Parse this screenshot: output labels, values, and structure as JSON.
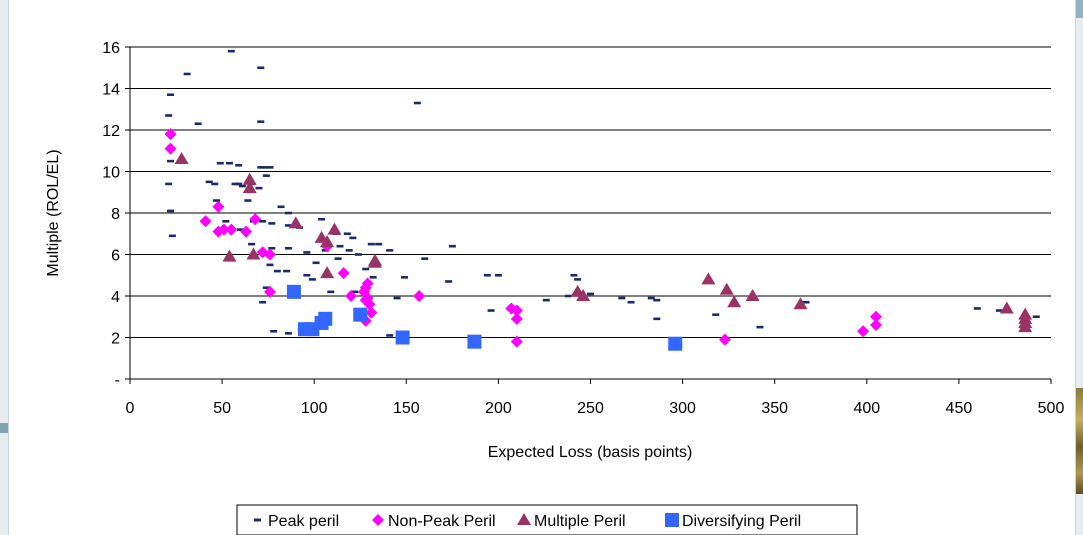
{
  "chart_data": {
    "type": "scatter",
    "xlabel": "Expected Loss (basis points)",
    "ylabel": "Multiple (ROL/EL)",
    "xlim": [
      0,
      500
    ],
    "ylim": [
      0,
      16
    ],
    "x_ticks": [
      "0",
      "50",
      "100",
      "150",
      "200",
      "250",
      "300",
      "350",
      "400",
      "450",
      "500"
    ],
    "y_ticks": [
      "-",
      "2",
      "4",
      "6",
      "8",
      "10",
      "12",
      "14",
      "16"
    ],
    "grid": "horizontal",
    "legend_position": "bottom",
    "series": [
      {
        "name": "Peak peril",
        "marker": "dash",
        "color": "#1a2a6b",
        "points": [
          [
            55,
            15.8
          ],
          [
            31,
            14.7
          ],
          [
            71,
            15.0
          ],
          [
            22,
            13.7
          ],
          [
            156,
            13.3
          ],
          [
            21,
            12.7
          ],
          [
            37,
            12.3
          ],
          [
            71,
            12.4
          ],
          [
            22,
            10.5
          ],
          [
            49,
            10.4
          ],
          [
            54,
            10.4
          ],
          [
            59,
            10.3
          ],
          [
            73,
            10.2
          ],
          [
            76,
            10.2
          ],
          [
            71,
            10.2
          ],
          [
            21,
            9.4
          ],
          [
            43,
            9.5
          ],
          [
            46,
            9.4
          ],
          [
            57,
            9.4
          ],
          [
            59,
            9.4
          ],
          [
            61,
            9.3
          ],
          [
            66,
            9.4
          ],
          [
            70,
            9.2
          ],
          [
            74,
            9.8
          ],
          [
            47,
            8.6
          ],
          [
            64,
            8.6
          ],
          [
            82,
            8.3
          ],
          [
            86,
            8.0
          ],
          [
            22,
            8.1
          ],
          [
            52,
            7.6
          ],
          [
            67,
            7.6
          ],
          [
            72,
            7.6
          ],
          [
            77,
            7.5
          ],
          [
            86,
            7.4
          ],
          [
            92,
            7.3
          ],
          [
            104,
            7.7
          ],
          [
            112,
            7.0
          ],
          [
            118,
            7.0
          ],
          [
            121,
            6.8
          ],
          [
            23,
            6.9
          ],
          [
            66,
            6.5
          ],
          [
            77,
            6.3
          ],
          [
            86,
            6.3
          ],
          [
            96,
            6.1
          ],
          [
            106,
            6.2
          ],
          [
            114,
            6.4
          ],
          [
            119,
            6.2
          ],
          [
            124,
            6.0
          ],
          [
            131,
            6.5
          ],
          [
            135,
            6.5
          ],
          [
            141,
            6.2
          ],
          [
            128,
            5.3
          ],
          [
            113,
            5.8
          ],
          [
            101,
            5.6
          ],
          [
            76,
            5.5
          ],
          [
            80,
            5.2
          ],
          [
            85,
            5.2
          ],
          [
            72,
            3.7
          ],
          [
            96,
            5.0
          ],
          [
            132,
            4.9
          ],
          [
            160,
            5.8
          ],
          [
            175,
            6.4
          ],
          [
            194,
            5.0
          ],
          [
            200,
            5.0
          ],
          [
            149,
            4.9
          ],
          [
            173,
            4.7
          ],
          [
            109,
            4.2
          ],
          [
            122,
            4.2
          ],
          [
            145,
            3.9
          ],
          [
            241,
            5.0
          ],
          [
            243,
            4.8
          ],
          [
            238,
            4.0
          ],
          [
            250,
            4.1
          ],
          [
            267,
            3.9
          ],
          [
            272,
            3.7
          ],
          [
            283,
            3.9
          ],
          [
            286,
            3.8
          ],
          [
            226,
            3.8
          ],
          [
            196,
            3.3
          ],
          [
            286,
            2.9
          ],
          [
            318,
            3.1
          ],
          [
            342,
            2.5
          ],
          [
            367,
            3.7
          ],
          [
            460,
            3.4
          ],
          [
            472,
            3.3
          ],
          [
            492,
            3.0
          ],
          [
            78,
            2.3
          ],
          [
            86,
            2.2
          ],
          [
            93,
            2.4
          ],
          [
            100,
            2.6
          ],
          [
            102,
            2.5
          ],
          [
            141,
            2.1
          ],
          [
            74,
            4.4
          ],
          [
            60,
            7.2
          ],
          [
            99,
            4.8
          ]
        ]
      },
      {
        "name": "Non-Peak Peril",
        "marker": "diamond",
        "color": "#ff00ff",
        "points": [
          [
            22,
            11.8
          ],
          [
            22,
            11.1
          ],
          [
            48,
            8.3
          ],
          [
            41,
            7.6
          ],
          [
            48,
            7.1
          ],
          [
            51,
            7.2
          ],
          [
            55,
            7.2
          ],
          [
            63,
            7.1
          ],
          [
            68,
            7.7
          ],
          [
            72,
            6.1
          ],
          [
            76,
            6.0
          ],
          [
            76,
            4.2
          ],
          [
            107,
            6.4
          ],
          [
            116,
            5.1
          ],
          [
            120,
            4.0
          ],
          [
            128,
            4.4
          ],
          [
            128,
            3.8
          ],
          [
            130,
            3.6
          ],
          [
            129,
            3.9
          ],
          [
            131,
            3.2
          ],
          [
            128,
            2.8
          ],
          [
            157,
            4.0
          ],
          [
            207,
            3.4
          ],
          [
            210,
            3.3
          ],
          [
            210,
            2.9
          ],
          [
            210,
            1.8
          ],
          [
            323,
            1.9
          ],
          [
            398,
            2.3
          ],
          [
            405,
            2.6
          ],
          [
            405,
            3.0
          ],
          [
            127,
            4.2
          ],
          [
            129,
            4.6
          ]
        ]
      },
      {
        "name": "Multiple Peril",
        "marker": "triangle",
        "color": "#993366",
        "points": [
          [
            28,
            10.6
          ],
          [
            65,
            9.6
          ],
          [
            65,
            9.2
          ],
          [
            54,
            5.9
          ],
          [
            67,
            6.0
          ],
          [
            90,
            7.5
          ],
          [
            104,
            6.8
          ],
          [
            107,
            6.6
          ],
          [
            107,
            5.1
          ],
          [
            111,
            7.2
          ],
          [
            133,
            5.7
          ],
          [
            133,
            5.6
          ],
          [
            243,
            4.2
          ],
          [
            246,
            4.0
          ],
          [
            314,
            4.8
          ],
          [
            324,
            4.3
          ],
          [
            328,
            3.7
          ],
          [
            338,
            4.0
          ],
          [
            364,
            3.6
          ],
          [
            476,
            3.4
          ],
          [
            486,
            3.1
          ],
          [
            486,
            2.9
          ],
          [
            486,
            2.5
          ],
          [
            486,
            2.7
          ]
        ]
      },
      {
        "name": "Diversifying Peril",
        "marker": "square",
        "color": "#3366ff",
        "points": [
          [
            89,
            4.2
          ],
          [
            95,
            2.4
          ],
          [
            99,
            2.4
          ],
          [
            104,
            2.7
          ],
          [
            106,
            2.9
          ],
          [
            125,
            3.1
          ],
          [
            148,
            2.0
          ],
          [
            187,
            1.8
          ],
          [
            296,
            1.7
          ]
        ]
      }
    ]
  }
}
